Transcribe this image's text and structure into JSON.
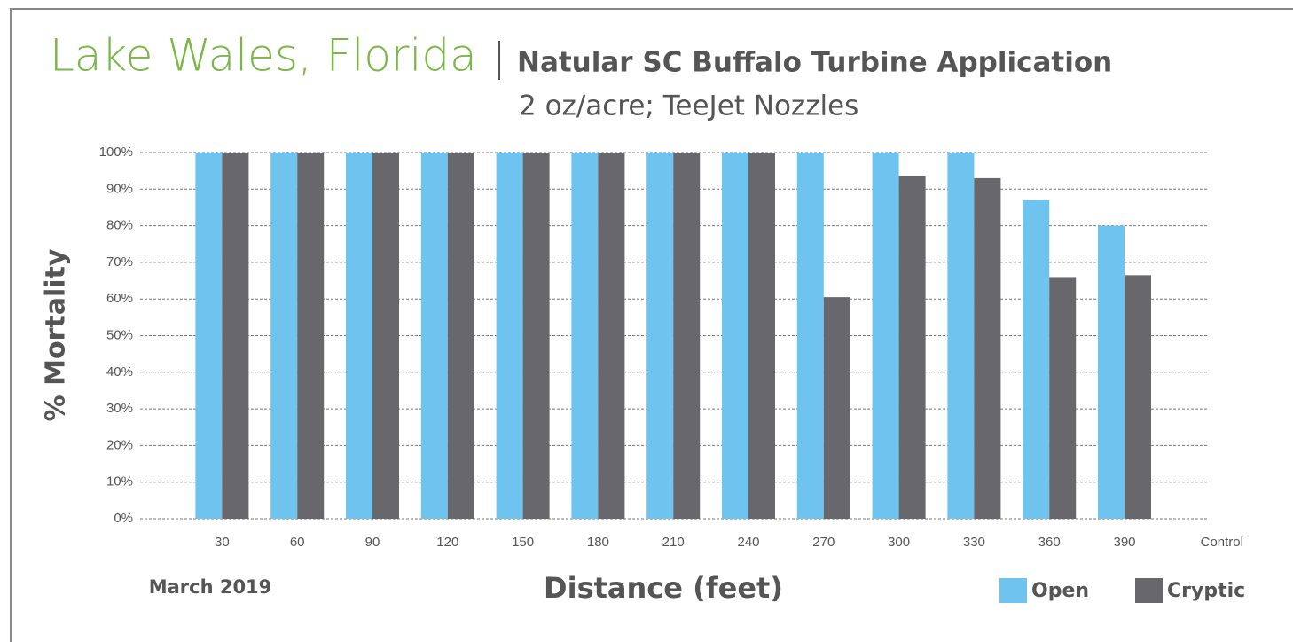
{
  "chart_data": {
    "type": "bar",
    "title": "Lake Wales, Florida",
    "subtitle": "Natular SC Buffalo Turbine Application",
    "subtitle2": "2 oz/acre; TeeJet Nozzles",
    "annotation": "March 2019",
    "x_label": "Distance (feet)",
    "y_label": "% Mortality",
    "categories": [
      "30",
      "60",
      "90",
      "120",
      "150",
      "180",
      "210",
      "240",
      "270",
      "300",
      "330",
      "360",
      "390",
      "Control"
    ],
    "series": [
      {
        "name": "Open",
        "color": "#6ec4ee",
        "values": [
          100,
          100,
          100,
          100,
          100,
          100,
          100,
          100,
          100,
          100,
          100,
          87,
          80,
          0
        ]
      },
      {
        "name": "Cryptic",
        "color": "#68686c",
        "values": [
          100,
          100,
          100,
          100,
          100,
          100,
          100,
          100,
          60.5,
          93.5,
          93,
          66,
          66.5,
          0
        ]
      }
    ],
    "ylim": [
      0,
      100
    ],
    "yticks": [
      {
        "value": 0,
        "label": "0%"
      },
      {
        "value": 10,
        "label": "10%"
      },
      {
        "value": 20,
        "label": "20%"
      },
      {
        "value": 30,
        "label": "30%"
      },
      {
        "value": 40,
        "label": "40%"
      },
      {
        "value": 50,
        "label": "50%"
      },
      {
        "value": 60,
        "label": "60%"
      },
      {
        "value": 70,
        "label": "70%"
      },
      {
        "value": 80,
        "label": "80%"
      },
      {
        "value": 90,
        "label": "90%"
      },
      {
        "value": 100,
        "label": "100%"
      }
    ],
    "grid": true,
    "legend": "bottom right"
  }
}
